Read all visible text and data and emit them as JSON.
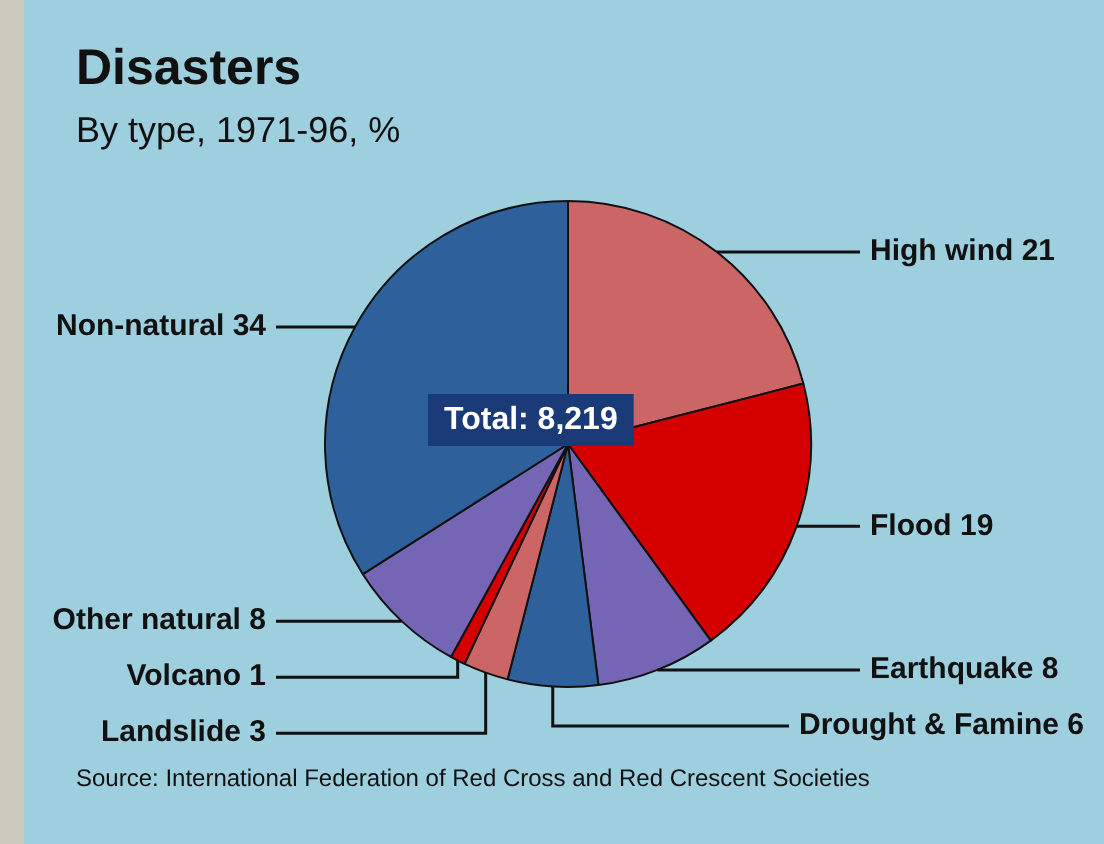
{
  "chart_data": {
    "type": "pie",
    "title": "Disasters",
    "subtitle": "By type, 1971-96, %",
    "categories": [
      "High wind 21",
      "Flood 19",
      "Earthquake 8",
      "Drought & Famine 6",
      "Landslide 3",
      "Volcano 1",
      "Other natural 8",
      "Non-natural 34"
    ],
    "values": [
      21,
      19,
      8,
      6,
      3,
      1,
      8,
      34
    ],
    "colors": [
      "#cc6666",
      "#d40000",
      "#7466b4",
      "#2e619c",
      "#cc6666",
      "#d40000",
      "#7466b4",
      "#2e619c"
    ],
    "legend": false,
    "annotations": [
      "Total: 8,219",
      "Source: International Federation of Red Cross and Red Crescent Societies"
    ]
  }
}
